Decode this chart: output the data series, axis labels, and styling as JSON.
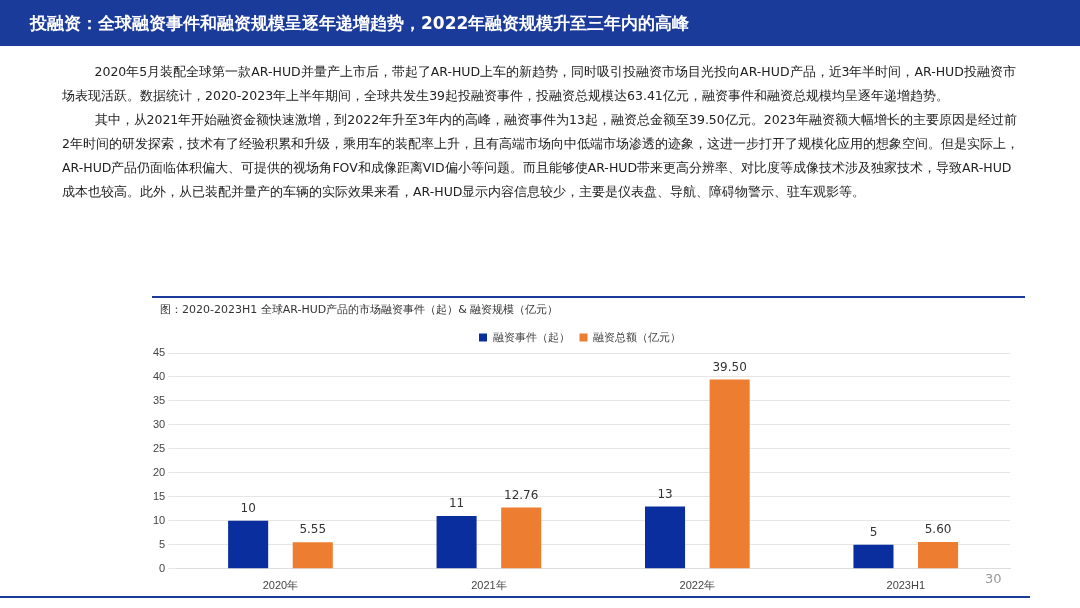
{
  "chart_data": {
    "type": "bar",
    "title": "投融资：全球融资事件和融资规模呈逐年递增趋势，2022年融资规模升至三年内的高峰",
    "subtitle": "图：2020-2023H1 全球AR-HUD产品的市场融资事件（起）& 融资规模（亿元）",
    "annotations": [
      "2020年5月装配全球第一款AR-HUD并量产上市后，带起了AR-HUD上车的新趋势，同时吸引投融资市场目光投向AR-HUD产品，近3年半时间，AR-HUD投融资市场表现活跃。数据统计，2020-2023年上半年期间，全球共发生39起投融资事件，投融资总规模达63.41亿元，融资事件和融资总规模均呈逐年递增趋势。",
      "其中，从2021年开始融资金额快速激增，到2022年升至3年内的高峰，融资事件为13起，融资总金额至39.50亿元。2023年融资额大幅增长的主要原因是经过前2年时间的研发探索，技术有了经验积累和升级，乘用车的装配率上升，且有高端市场向中低端市场渗透的迹象，这进一步打开了规模化应用的想象空间。但是实际上，AR-HUD产品仍面临体积偏大、可提供的视场角FOV和成像距离VID偏小等问题。而且能够使AR-HUD带来更高分辨率、对比度等成像技术涉及独家技术，导致AR-HUD成本也较高。此外，从已装配并量产的车辆的实际效果来看，AR-HUD显示内容信息较少，主要是仪表盘、导航、障碍物警示、驻车观影等。",
      "30"
    ],
    "categories": [
      "2020年",
      "2021年",
      "2022年",
      "2023H1"
    ],
    "series": [
      {
        "name": "融资事件（起）",
        "color": "#0b2e9e",
        "values": [
          10,
          11,
          13,
          5
        ],
        "value_labels": [
          "10",
          "11",
          "13",
          "5"
        ]
      },
      {
        "name": "融资总额（亿元）",
        "color": "#ed7d31",
        "values": [
          5.55,
          12.76,
          39.5,
          5.6
        ],
        "value_labels": [
          "5.55",
          "12.76",
          "39.50",
          "5.60"
        ]
      }
    ],
    "ylim": [
      0,
      45
    ],
    "yticks": [
      0,
      5,
      10,
      15,
      20,
      25,
      30,
      35,
      40,
      45
    ],
    "grid": "y",
    "legend": "top"
  }
}
